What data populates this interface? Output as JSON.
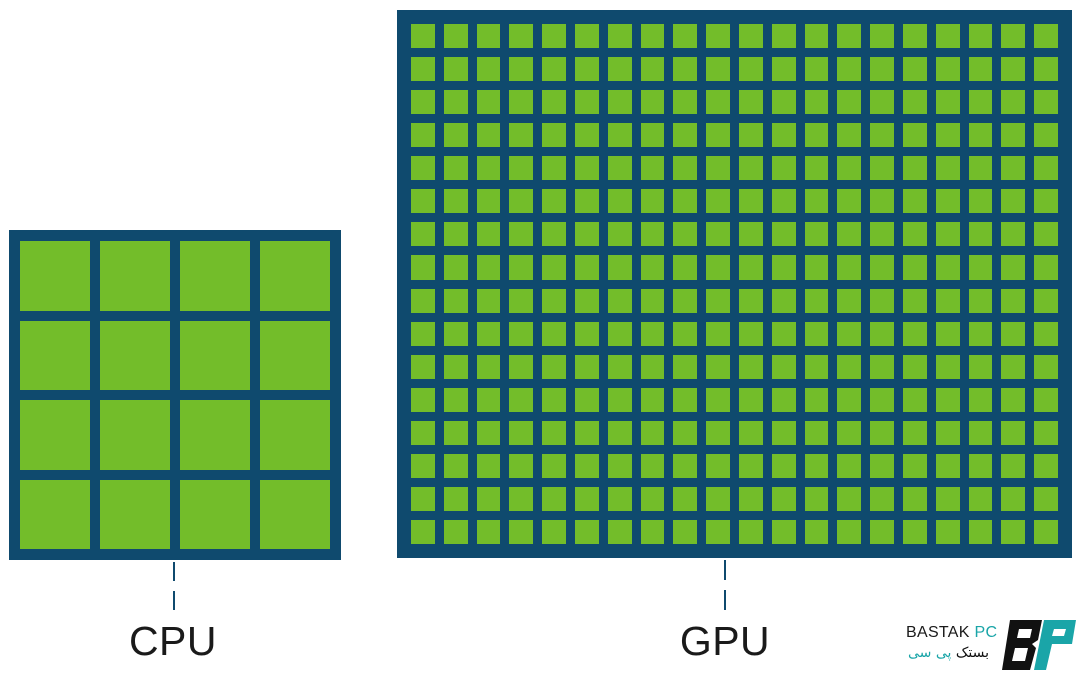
{
  "colors": {
    "chip_background": "#0f4a6e",
    "core_fill": "#73bd2a",
    "logo_accent": "#1aa5a8",
    "logo_dark": "#111111"
  },
  "cpu": {
    "label": "CPU",
    "rows": 4,
    "cols": 4
  },
  "gpu": {
    "label": "GPU",
    "rows": 16,
    "cols": 20
  },
  "logo": {
    "name_main": "BASTAK",
    "name_accent": "PC",
    "name_persian_main": "بستک",
    "name_persian_accent": "پی سی",
    "mark_icon": "bastak-pc-logo-icon"
  }
}
